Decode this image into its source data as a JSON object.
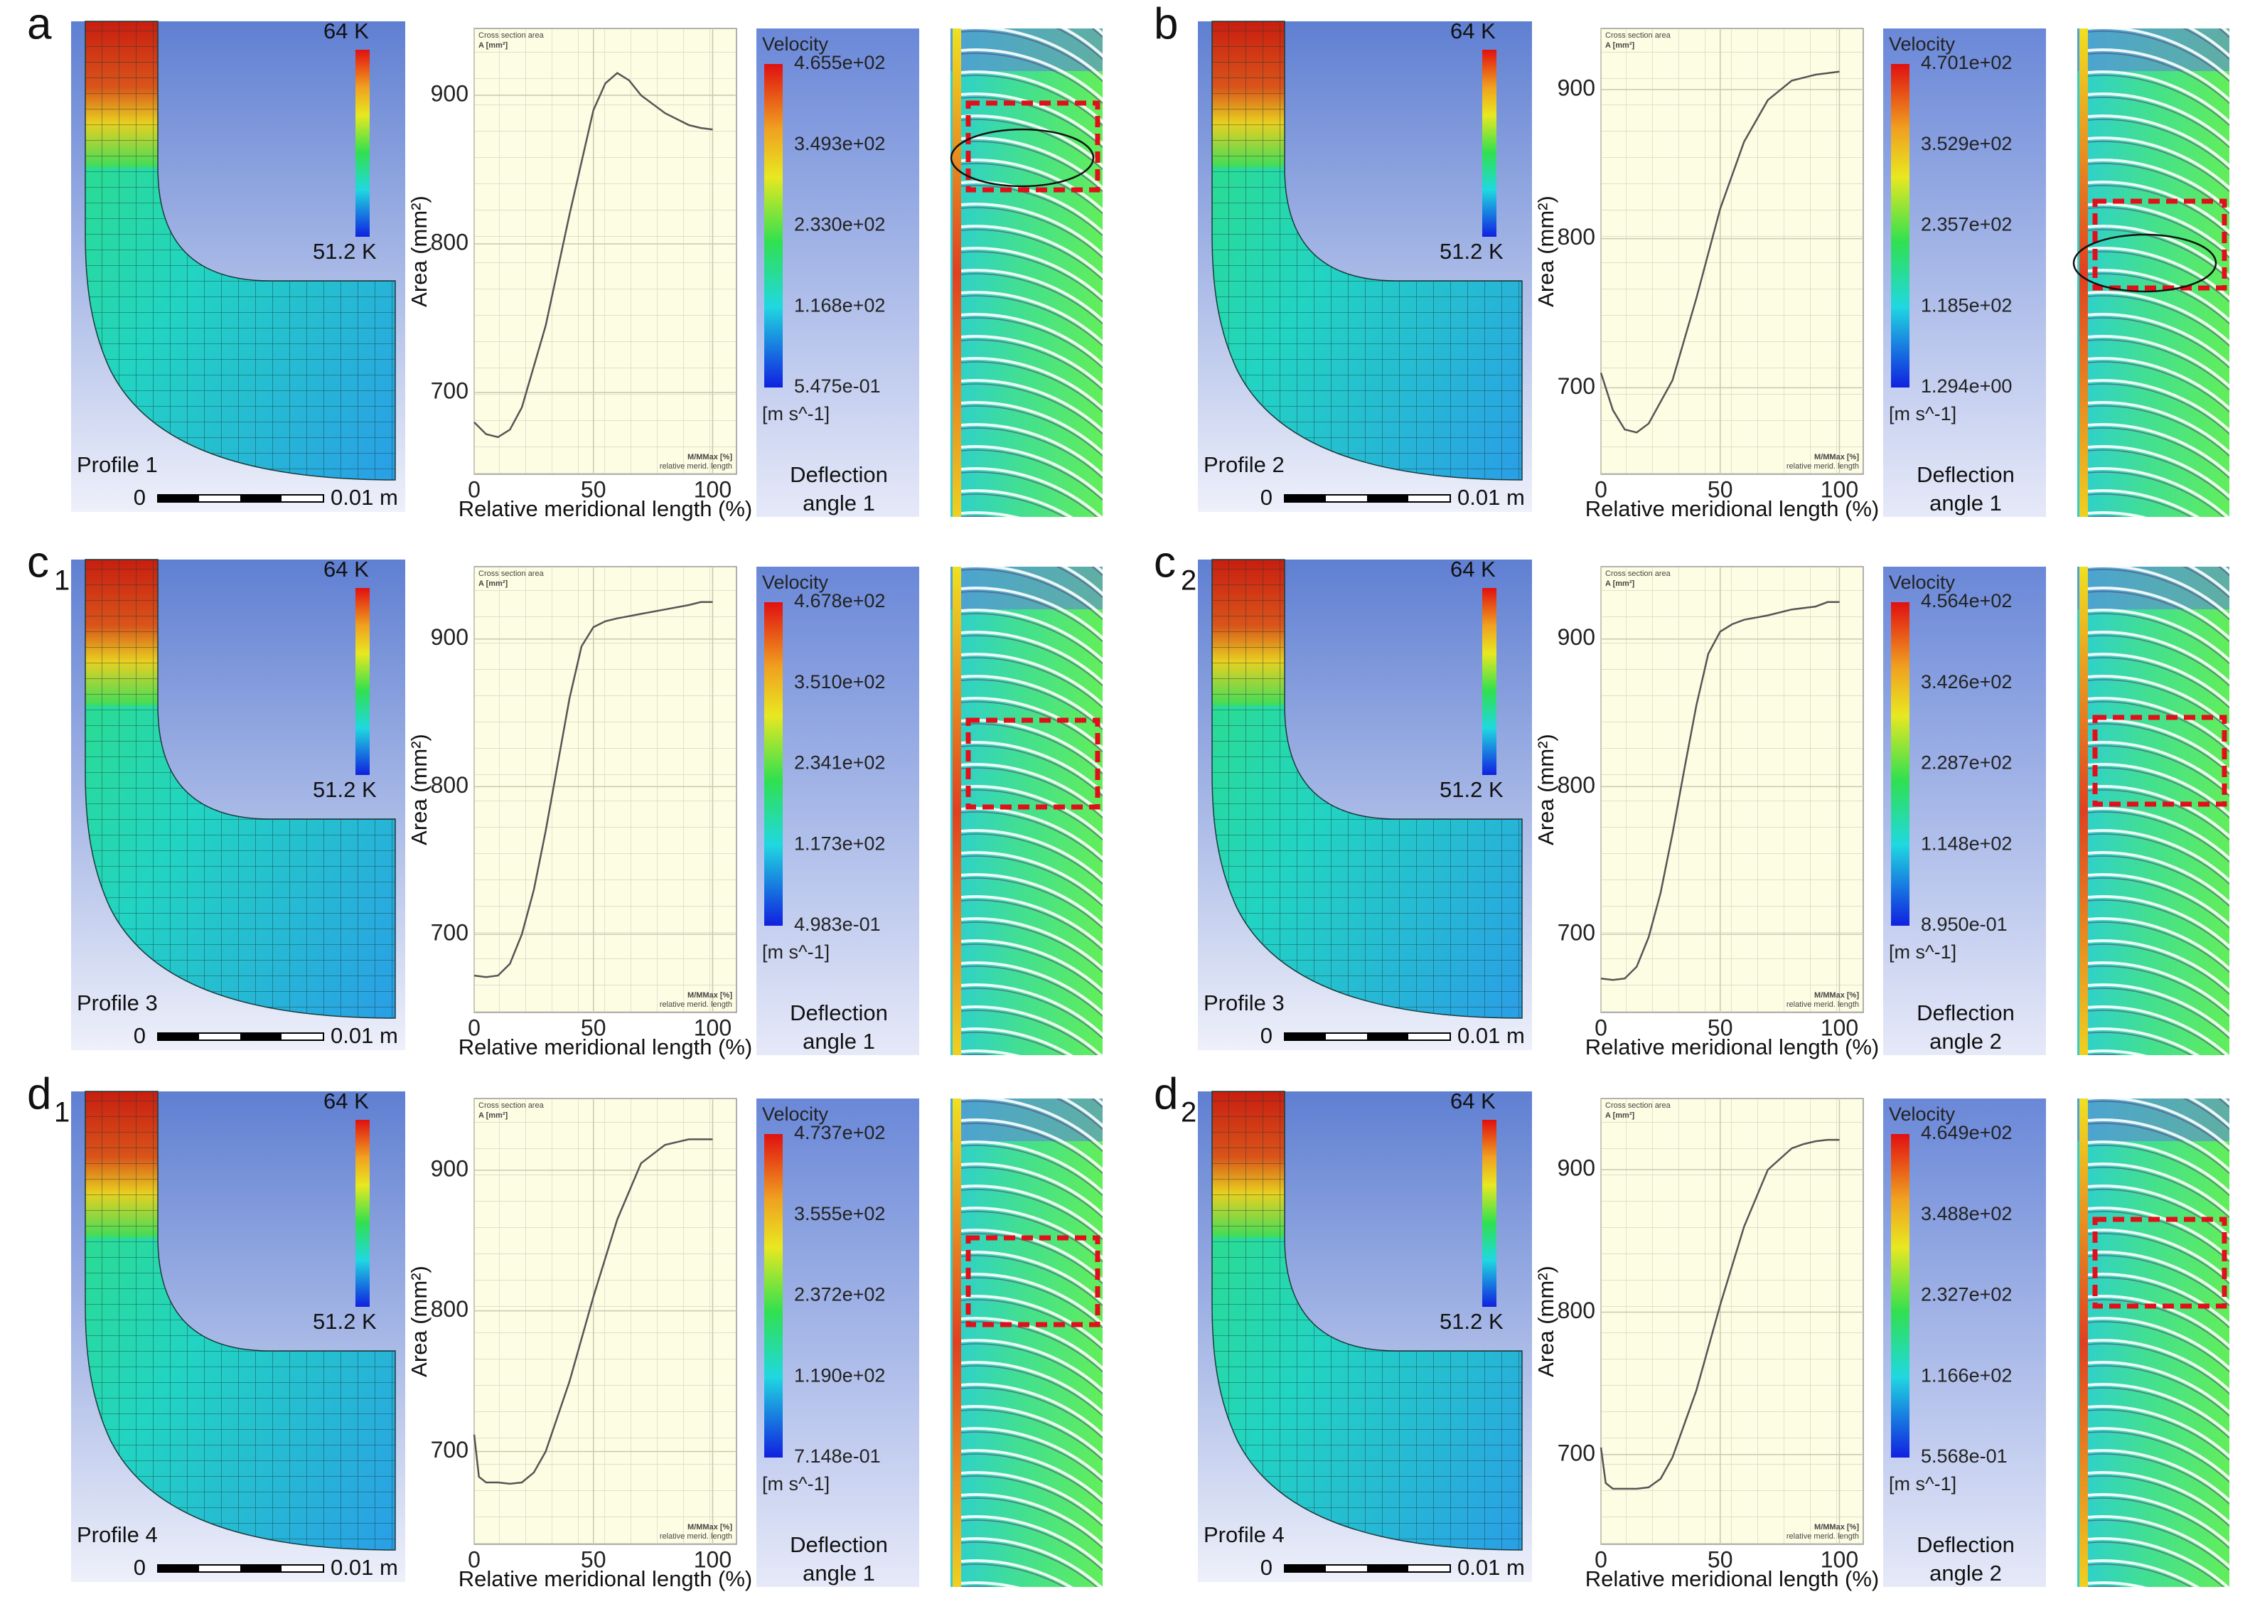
{
  "shared": {
    "chart_title": "Cross section area",
    "chart_unit": "A [mm²]",
    "chart_xinfo": "M/MMax [%]",
    "chart_xinfo2": "relative merid. length",
    "ylabel": "Area (mm²)",
    "xlabel": "Relative meridional length (%)",
    "velocity_title": "Velocity",
    "velocity_unit": "[m s^-1]",
    "scale_zero": "0",
    "scale_length": "0.01 m",
    "temp_max": "64 K",
    "temp_min": "51.2 K"
  },
  "panels": [
    {
      "label": "a",
      "profile": "Profile 1",
      "velocity_ticks": [
        "4.655e+02",
        "3.493e+02",
        "2.330e+02",
        "1.168e+02",
        "5.475e-01"
      ],
      "deflection": [
        "Deflection",
        "angle 1"
      ],
      "chart": {
        "type": "line",
        "x": [
          0,
          5,
          10,
          15,
          20,
          30,
          40,
          50,
          55,
          60,
          65,
          70,
          80,
          90,
          95,
          100
        ],
        "values": [
          680,
          672,
          670,
          675,
          690,
          745,
          820,
          890,
          908,
          915,
          910,
          900,
          888,
          880,
          878,
          877
        ],
        "xlim": [
          0,
          110
        ],
        "ylim": [
          645,
          945
        ],
        "xticks": [
          0,
          50,
          100
        ],
        "yticks": [
          700,
          800,
          900
        ]
      }
    },
    {
      "label": "b",
      "profile": "Profile 2",
      "velocity_ticks": [
        "4.701e+02",
        "3.529e+02",
        "2.357e+02",
        "1.185e+02",
        "1.294e+00"
      ],
      "deflection": [
        "Deflection",
        "angle 1"
      ],
      "chart": {
        "type": "line",
        "x": [
          0,
          5,
          10,
          15,
          20,
          30,
          40,
          50,
          60,
          70,
          80,
          90,
          95,
          100
        ],
        "values": [
          710,
          685,
          672,
          670,
          676,
          705,
          760,
          820,
          865,
          893,
          906,
          910,
          911,
          912
        ],
        "xlim": [
          0,
          110
        ],
        "ylim": [
          642,
          941
        ],
        "xticks": [
          0,
          50,
          100
        ],
        "yticks": [
          700,
          800,
          900
        ]
      }
    },
    {
      "label": "c",
      "label_sub": "1",
      "profile": "Profile 3",
      "velocity_ticks": [
        "4.678e+02",
        "3.510e+02",
        "2.341e+02",
        "1.173e+02",
        "4.983e-01"
      ],
      "deflection": [
        "Deflection",
        "angle 1"
      ],
      "chart": {
        "type": "line",
        "x": [
          0,
          5,
          10,
          15,
          20,
          25,
          30,
          35,
          40,
          45,
          50,
          55,
          60,
          70,
          80,
          90,
          95,
          100
        ],
        "values": [
          672,
          671,
          672,
          680,
          700,
          730,
          770,
          815,
          860,
          895,
          908,
          912,
          914,
          917,
          920,
          923,
          925,
          925
        ],
        "xlim": [
          0,
          110
        ],
        "ylim": [
          647,
          949
        ],
        "xticks": [
          0,
          50,
          100
        ],
        "yticks": [
          700,
          800,
          900
        ]
      }
    },
    {
      "label": "c",
      "label_sub": "2",
      "profile": "Profile 3",
      "velocity_ticks": [
        "4.564e+02",
        "3.426e+02",
        "2.287e+02",
        "1.148e+02",
        "8.950e-01"
      ],
      "deflection": [
        "Deflection",
        "angle 2"
      ],
      "chart": {
        "type": "line",
        "x": [
          0,
          5,
          10,
          15,
          20,
          25,
          30,
          35,
          40,
          45,
          50,
          55,
          60,
          70,
          80,
          90,
          95,
          100
        ],
        "values": [
          670,
          669,
          670,
          678,
          698,
          728,
          768,
          812,
          855,
          890,
          905,
          910,
          913,
          916,
          920,
          922,
          925,
          925
        ],
        "xlim": [
          0,
          110
        ],
        "ylim": [
          647,
          949
        ],
        "xticks": [
          0,
          50,
          100
        ],
        "yticks": [
          700,
          800,
          900
        ]
      }
    },
    {
      "label": "d",
      "label_sub": "1",
      "profile": "Profile 4",
      "velocity_ticks": [
        "4.737e+02",
        "3.555e+02",
        "2.372e+02",
        "1.190e+02",
        "7.148e-01"
      ],
      "deflection": [
        "Deflection",
        "angle 1"
      ],
      "chart": {
        "type": "line",
        "x": [
          0,
          2,
          5,
          10,
          15,
          20,
          25,
          30,
          40,
          50,
          60,
          70,
          80,
          85,
          90,
          95,
          100
        ],
        "values": [
          712,
          682,
          678,
          678,
          677,
          678,
          685,
          700,
          750,
          810,
          865,
          905,
          918,
          920,
          922,
          922,
          922
        ],
        "xlim": [
          0,
          110
        ],
        "ylim": [
          634,
          951
        ],
        "xticks": [
          0,
          50,
          100
        ],
        "yticks": [
          700,
          800,
          900
        ]
      }
    },
    {
      "label": "d",
      "label_sub": "2",
      "profile": "Profile 4",
      "velocity_ticks": [
        "4.649e+02",
        "3.488e+02",
        "2.327e+02",
        "1.166e+02",
        "5.568e-01"
      ],
      "deflection": [
        "Deflection",
        "angle 2"
      ],
      "chart": {
        "type": "line",
        "x": [
          0,
          2,
          5,
          10,
          15,
          20,
          25,
          30,
          40,
          50,
          60,
          70,
          80,
          85,
          90,
          95,
          100
        ],
        "values": [
          705,
          680,
          676,
          676,
          676,
          677,
          683,
          698,
          745,
          805,
          860,
          900,
          915,
          918,
          920,
          921,
          921
        ],
        "xlim": [
          0,
          110
        ],
        "ylim": [
          637,
          950
        ],
        "xticks": [
          0,
          50,
          100
        ],
        "yticks": [
          700,
          800,
          900
        ]
      }
    }
  ]
}
